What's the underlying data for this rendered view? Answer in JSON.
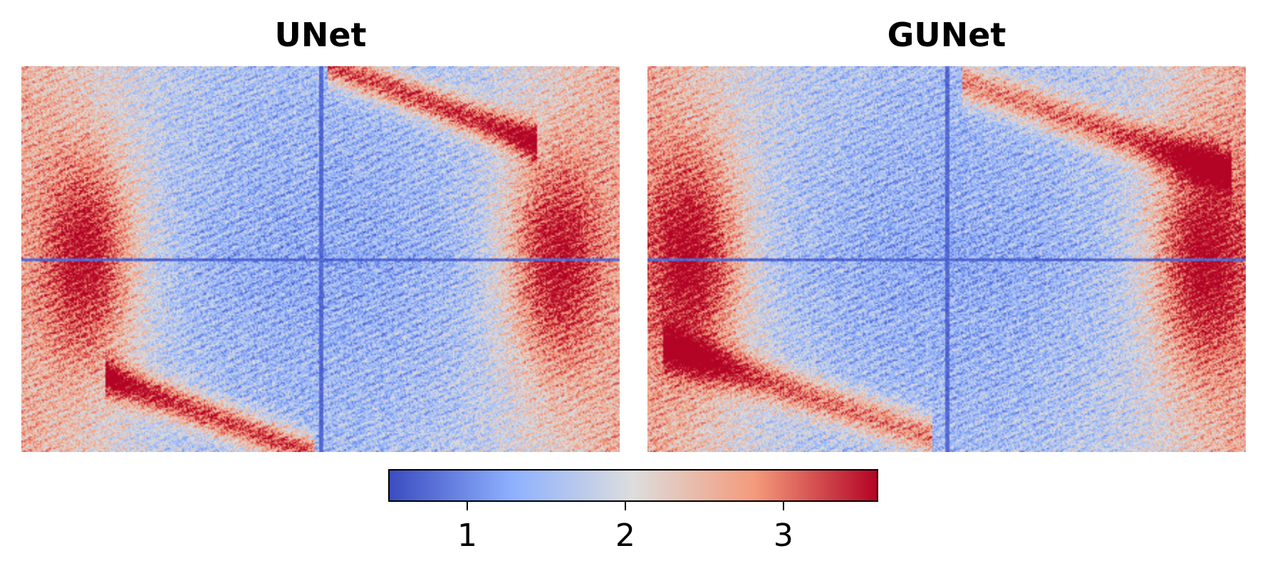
{
  "chart_data": [
    {
      "type": "heatmap",
      "title": "UNet",
      "xlabel": "",
      "ylabel": "",
      "axes_visible": false,
      "colormap": "coolwarm",
      "description_value_range": [
        0.5,
        3.6
      ]
    },
    {
      "type": "heatmap",
      "title": "GUNet",
      "xlabel": "",
      "ylabel": "",
      "axes_visible": false,
      "colormap": "coolwarm",
      "description_value_range": [
        0.5,
        3.6
      ]
    }
  ],
  "colorbar": {
    "orientation": "horizontal",
    "vmin": 0.5,
    "vmax": 3.6,
    "ticks": [
      1,
      2,
      3
    ],
    "tick_labels": [
      "1",
      "2",
      "3"
    ],
    "colormap": "coolwarm",
    "colors": [
      "#3b4cc0",
      "#8db0fe",
      "#dddddd",
      "#f49a7b",
      "#b40426"
    ]
  }
}
